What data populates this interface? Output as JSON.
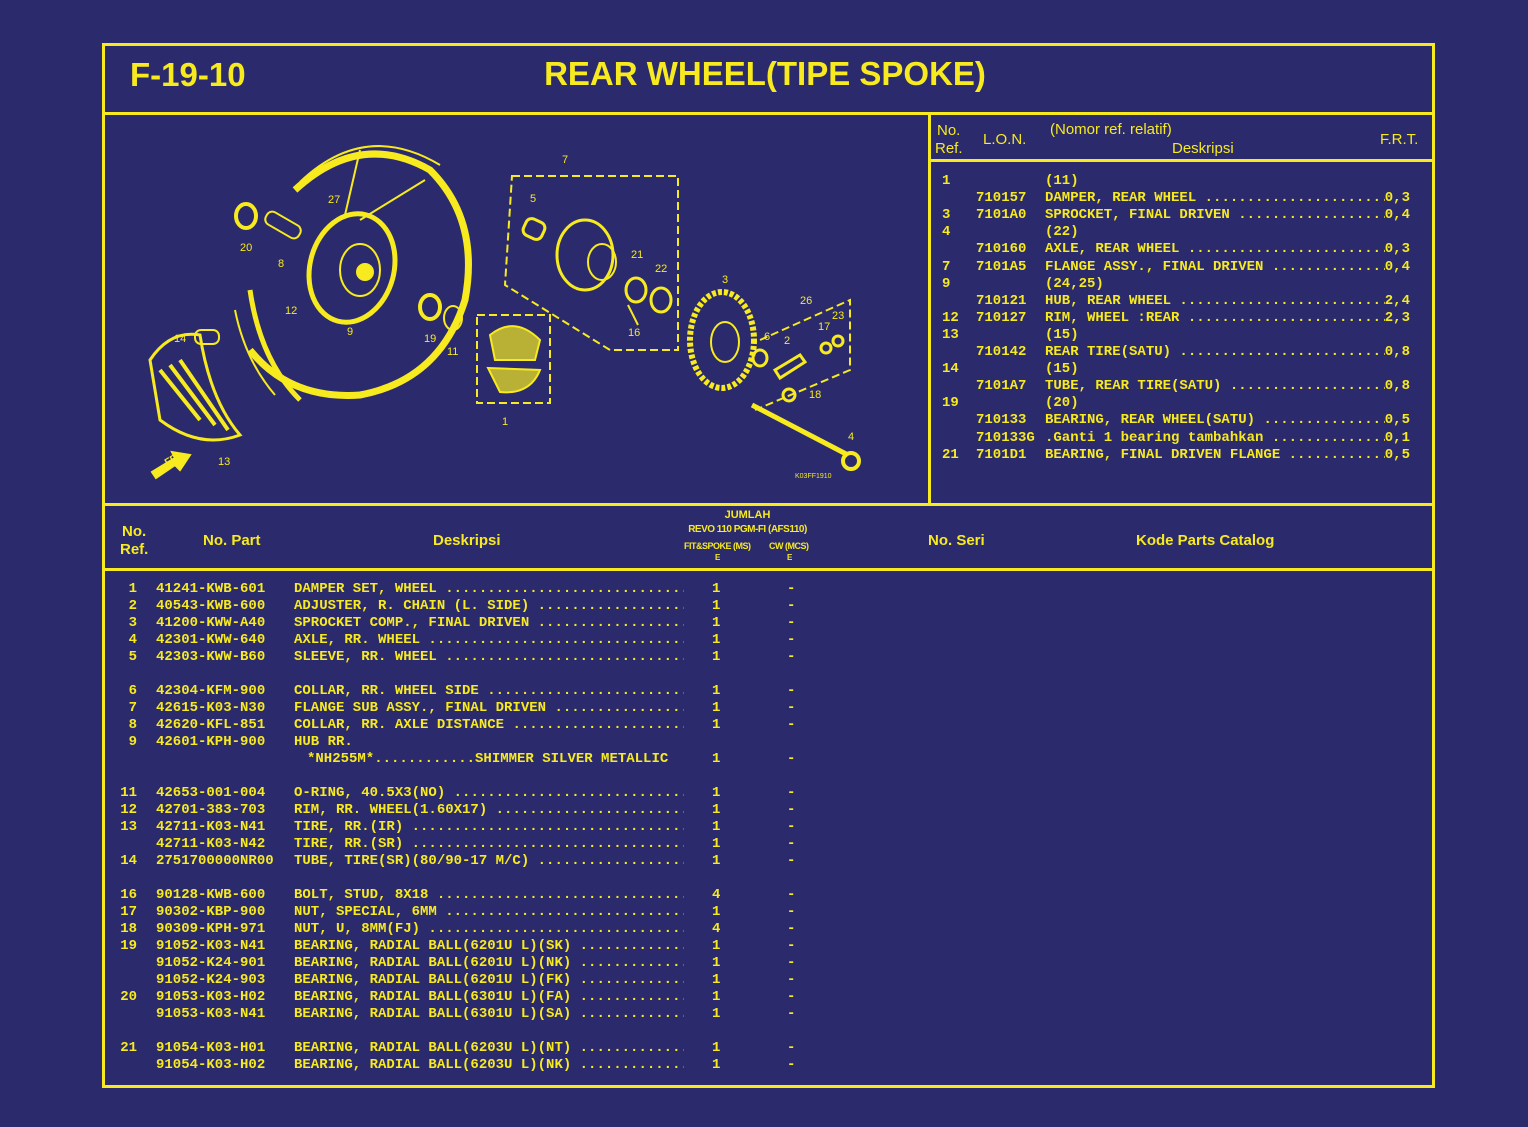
{
  "header": {
    "code": "F-19-10",
    "title": "REAR WHEEL(TIPE SPOKE)"
  },
  "colors": {
    "background": "#2a2a6c",
    "foreground": "#f7ea1f"
  },
  "diagram": {
    "callouts": [
      "27",
      "20",
      "8",
      "12",
      "9",
      "14",
      "13",
      "19",
      "11",
      "7",
      "5",
      "21",
      "22",
      "16",
      "1",
      "3",
      "26",
      "23",
      "17",
      "6",
      "2",
      "18",
      "4"
    ],
    "front_label": "FR.",
    "drawing_code": "K03FF1910"
  },
  "frt_table": {
    "headers": {
      "no_ref_1": "No.",
      "no_ref_2": "Ref.",
      "lon": "L.O.N.",
      "relative": "(Nomor ref. relatif)",
      "desc": "Deskripsi",
      "frt": "F.R.T."
    },
    "rows": [
      {
        "ref": "1",
        "lon": "",
        "desc": "(11)",
        "frt": ""
      },
      {
        "ref": "",
        "lon": "710157",
        "desc": "DAMPER, REAR WHEEL",
        "frt": "0,3"
      },
      {
        "ref": "3",
        "lon": "7101A0",
        "desc": "SPROCKET, FINAL DRIVEN",
        "frt": "0,4"
      },
      {
        "ref": "4",
        "lon": "",
        "desc": "(22)",
        "frt": ""
      },
      {
        "ref": "",
        "lon": "710160",
        "desc": "AXLE, REAR WHEEL",
        "frt": "0,3"
      },
      {
        "ref": "7",
        "lon": "7101A5",
        "desc": "FLANGE ASSY., FINAL DRIVEN",
        "frt": "0,4"
      },
      {
        "ref": "9",
        "lon": "",
        "desc": "(24,25)",
        "frt": ""
      },
      {
        "ref": "",
        "lon": "710121",
        "desc": "HUB, REAR WHEEL",
        "frt": "2,4"
      },
      {
        "ref": "12",
        "lon": "710127",
        "desc": "RIM, WHEEL :REAR",
        "frt": "2,3"
      },
      {
        "ref": "13",
        "lon": "",
        "desc": "(15)",
        "frt": ""
      },
      {
        "ref": "",
        "lon": "710142",
        "desc": "REAR TIRE(SATU)",
        "frt": "0,8"
      },
      {
        "ref": "14",
        "lon": "",
        "desc": "(15)",
        "frt": ""
      },
      {
        "ref": "",
        "lon": "7101A7",
        "desc": "TUBE, REAR TIRE(SATU)",
        "frt": "0,8"
      },
      {
        "ref": "19",
        "lon": "",
        "desc": "(20)",
        "frt": ""
      },
      {
        "ref": "",
        "lon": "710133",
        "desc": "BEARING, REAR WHEEL(SATU)",
        "frt": "0,5"
      },
      {
        "ref": "",
        "lon": "710133G",
        "desc": ".Ganti 1 bearing tambahkan",
        "frt": "0,1"
      },
      {
        "ref": "21",
        "lon": "7101D1",
        "desc": "BEARING, FINAL DRIVEN FLANGE",
        "frt": "0,5"
      }
    ]
  },
  "parts_table": {
    "headers": {
      "no_ref_1": "No.",
      "no_ref_2": "Ref.",
      "part": "No. Part",
      "desc": "Deskripsi",
      "jumlah": "JUMLAH",
      "model": "REVO 110 PGM-FI (AFS110)",
      "col1": "FIT&SPOKE (MS)",
      "col2": "CW (MCS)",
      "col1_sub": "E",
      "col2_sub": "E",
      "serial": "No. Seri",
      "catalog": "Kode Parts Catalog"
    },
    "groups": [
      [
        {
          "ref": "1",
          "part": "41241-KWB-601",
          "desc": "DAMPER SET, WHEEL",
          "qty": "1",
          "cw": "-"
        },
        {
          "ref": "2",
          "part": "40543-KWB-600",
          "desc": "ADJUSTER, R. CHAIN (L. SIDE)",
          "qty": "1",
          "cw": "-"
        },
        {
          "ref": "3",
          "part": "41200-KWW-A40",
          "desc": "SPROCKET COMP., FINAL DRIVEN",
          "qty": "1",
          "cw": "-"
        },
        {
          "ref": "4",
          "part": "42301-KWW-640",
          "desc": "AXLE, RR. WHEEL",
          "qty": "1",
          "cw": "-"
        },
        {
          "ref": "5",
          "part": "42303-KWW-B60",
          "desc": "SLEEVE, RR. WHEEL",
          "qty": "1",
          "cw": "-"
        }
      ],
      [
        {
          "ref": "6",
          "part": "42304-KFM-900",
          "desc": "COLLAR, RR. WHEEL SIDE",
          "qty": "1",
          "cw": "-"
        },
        {
          "ref": "7",
          "part": "42615-K03-N30",
          "desc": "FLANGE SUB ASSY., FINAL DRIVEN",
          "qty": "1",
          "cw": "-"
        },
        {
          "ref": "8",
          "part": "42620-KFL-851",
          "desc": "COLLAR, RR. AXLE DISTANCE",
          "qty": "1",
          "cw": "-"
        },
        {
          "ref": "9",
          "part": "42601-KPH-900",
          "desc": "HUB RR.",
          "qty": "",
          "cw": "",
          "nolead": true
        },
        {
          "ref": "",
          "part": "",
          "desc": "*NH255M*............SHIMMER SILVER METALLIC",
          "qty": "1",
          "cw": "-",
          "nolead": true,
          "indent": true
        }
      ],
      [
        {
          "ref": "11",
          "part": "42653-001-004",
          "desc": "O-RING, 40.5X3(NO)",
          "qty": "1",
          "cw": "-"
        },
        {
          "ref": "12",
          "part": "42701-383-703",
          "desc": "RIM, RR. WHEEL(1.60X17)",
          "qty": "1",
          "cw": "-"
        },
        {
          "ref": "13",
          "part": "42711-K03-N41",
          "desc": "TIRE, RR.(IR)",
          "qty": "1",
          "cw": "-"
        },
        {
          "ref": "",
          "part": "42711-K03-N42",
          "desc": "TIRE, RR.(SR)",
          "qty": "1",
          "cw": "-"
        },
        {
          "ref": "14",
          "part": "2751700000NR00",
          "desc": "TUBE, TIRE(SR)(80/90-17 M/C)",
          "qty": "1",
          "cw": "-"
        }
      ],
      [
        {
          "ref": "16",
          "part": "90128-KWB-600",
          "desc": "BOLT, STUD, 8X18",
          "qty": "4",
          "cw": "-"
        },
        {
          "ref": "17",
          "part": "90302-KBP-900",
          "desc": "NUT, SPECIAL, 6MM",
          "qty": "1",
          "cw": "-"
        },
        {
          "ref": "18",
          "part": "90309-KPH-971",
          "desc": "NUT, U, 8MM(FJ)",
          "qty": "4",
          "cw": "-"
        },
        {
          "ref": "19",
          "part": "91052-K03-N41",
          "desc": "BEARING, RADIAL BALL(6201U L)(SK)",
          "qty": "1",
          "cw": "-"
        },
        {
          "ref": "",
          "part": "91052-K24-901",
          "desc": "BEARING, RADIAL BALL(6201U L)(NK)",
          "qty": "1",
          "cw": "-"
        },
        {
          "ref": "",
          "part": "91052-K24-903",
          "desc": "BEARING, RADIAL BALL(6201U L)(FK)",
          "qty": "1",
          "cw": "-"
        },
        {
          "ref": "20",
          "part": "91053-K03-H02",
          "desc": "BEARING, RADIAL BALL(6301U L)(FA)",
          "qty": "1",
          "cw": "-"
        },
        {
          "ref": "",
          "part": "91053-K03-N41",
          "desc": "BEARING, RADIAL BALL(6301U L)(SA)",
          "qty": "1",
          "cw": "-"
        }
      ],
      [
        {
          "ref": "21",
          "part": "91054-K03-H01",
          "desc": "BEARING, RADIAL BALL(6203U L)(NT)",
          "qty": "1",
          "cw": "-"
        },
        {
          "ref": "",
          "part": "91054-K03-H02",
          "desc": "BEARING, RADIAL BALL(6203U L)(NK)",
          "qty": "1",
          "cw": "-"
        }
      ]
    ]
  }
}
